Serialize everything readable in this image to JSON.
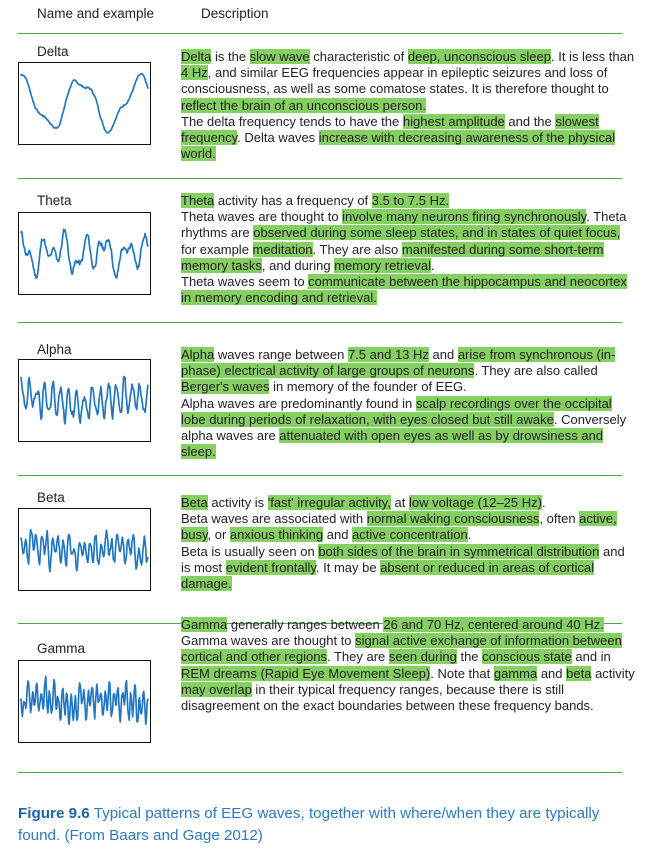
{
  "header": {
    "name_col": "Name and example",
    "desc_col": "Description"
  },
  "rows": [
    {
      "name": "Delta",
      "paragraphs": [
        [
          {
            "t": "Delta",
            "h": true
          },
          {
            "t": " is the "
          },
          {
            "t": "slow wave",
            "h": true
          },
          {
            "t": " characteristic of "
          },
          {
            "t": "deep, unconscious sleep",
            "h": true
          },
          {
            "t": ". It is less than "
          },
          {
            "t": "4 Hz",
            "h": true
          },
          {
            "t": ", and similar EEG frequencies appear in epileptic seizures and loss of consciousness, as well as some comatose states. It is therefore thought to "
          },
          {
            "t": "reflect the brain of an unconscious person.",
            "h": true
          }
        ],
        [
          {
            "t": "The delta frequency tends to have the "
          },
          {
            "t": "highest amplitude",
            "h": true
          },
          {
            "t": " and the "
          },
          {
            "t": "slowest frequency",
            "h": true
          },
          {
            "t": ". Delta waves "
          },
          {
            "t": "increase with decreasing awareness of the physical world.",
            "h": true
          }
        ]
      ]
    },
    {
      "name": "Theta",
      "paragraphs": [
        [
          {
            "t": "Theta",
            "h": true
          },
          {
            "t": " activity has a frequency of "
          },
          {
            "t": "3.5 to 7.5 Hz.",
            "h": true
          }
        ],
        [
          {
            "t": "Theta waves are thought to "
          },
          {
            "t": "involve many neurons firing synchronously",
            "h": true
          },
          {
            "t": ". Theta rhythms are "
          },
          {
            "t": "observed during some sleep states, and in states of quiet focus,",
            "h": true
          },
          {
            "t": " for example "
          },
          {
            "t": "meditation",
            "h": true
          },
          {
            "t": ". They are also "
          },
          {
            "t": "manifested during some short-term memory tasks",
            "h": true
          },
          {
            "t": ", and during "
          },
          {
            "t": "memory retrieval",
            "h": true
          },
          {
            "t": "."
          }
        ],
        [
          {
            "t": "Theta waves seem to "
          },
          {
            "t": "communicate between the hippocampus and neocortex in memory encoding and retrieval.",
            "h": true
          }
        ]
      ]
    },
    {
      "name": "Alpha",
      "paragraphs": [
        [
          {
            "t": "Alpha",
            "h": true
          },
          {
            "t": " waves range between "
          },
          {
            "t": "7.5 and 13 Hz",
            "h": true
          },
          {
            "t": " and "
          },
          {
            "t": "arise from synchronous (in-phase) electrical activity of large groups of neurons",
            "h": true
          },
          {
            "t": ". They are also called "
          },
          {
            "t": "Berger's waves",
            "h": true
          },
          {
            "t": " in memory of the founder of EEG."
          }
        ],
        [
          {
            "t": "Alpha waves are predominantly found in "
          },
          {
            "t": "scalp recordings over the occipital lobe during periods of relaxation, with eyes closed but still awake",
            "h": true
          },
          {
            "t": ". Conversely alpha waves are "
          },
          {
            "t": "attenuated with open eyes as well as by drowsiness and sleep.",
            "h": true
          }
        ]
      ]
    },
    {
      "name": "Beta",
      "paragraphs": [
        [
          {
            "t": "Beta",
            "h": true
          },
          {
            "t": " activity is "
          },
          {
            "t": "'fast' irregular activity,",
            "h": true
          },
          {
            "t": " at "
          },
          {
            "t": "low voltage (12–25 Hz)",
            "h": true
          },
          {
            "t": "."
          }
        ],
        [
          {
            "t": "Beta waves are associated with "
          },
          {
            "t": "normal waking consciousness",
            "h": true
          },
          {
            "t": ", often "
          },
          {
            "t": "active, busy",
            "h": true
          },
          {
            "t": ", or "
          },
          {
            "t": "anxious thinking",
            "h": true
          },
          {
            "t": " and "
          },
          {
            "t": "active concentration",
            "h": true
          },
          {
            "t": "."
          }
        ],
        [
          {
            "t": "Beta is usually seen on "
          },
          {
            "t": "both sides of the brain in symmetrical distribution",
            "h": true
          },
          {
            "t": " and is most "
          },
          {
            "t": "evident frontally",
            "h": true
          },
          {
            "t": ". It may be "
          },
          {
            "t": "absent or reduced in areas of cortical damage.",
            "h": true
          }
        ]
      ]
    },
    {
      "name": "Gamma",
      "paragraphs": [
        [
          {
            "t": "Gamma",
            "h": true
          },
          {
            "t": " generally ranges between "
          },
          {
            "t": "26 and 70 Hz, centered around 40 Hz.",
            "h": true
          }
        ],
        [
          {
            "t": "Gamma waves are thought to "
          },
          {
            "t": "signal active exchange of information between cortical and other regions",
            "h": true
          },
          {
            "t": ". They are "
          },
          {
            "t": "seen during",
            "h": true
          },
          {
            "t": " the "
          },
          {
            "t": "conscious state",
            "h": true
          },
          {
            "t": " and in "
          },
          {
            "t": "REM dreams (Rapid Eye Movement Sleep)",
            "h": true
          },
          {
            "t": ". Note that "
          },
          {
            "t": "gamma",
            "h": true
          },
          {
            "t": " and "
          },
          {
            "t": "beta",
            "h": true
          },
          {
            "t": " activity "
          },
          {
            "t": "may overlap",
            "h": true
          },
          {
            "t": " in their typical frequency ranges, because there is still disagreement on the exact boundaries between these frequency bands."
          }
        ]
      ]
    }
  ],
  "caption": {
    "figure_label": "Figure 9.6",
    "text": "Typical patterns of EEG waves, together with where/when they are typically found. (From Baars and Gage 2012)"
  },
  "colors": {
    "highlight": "#86cf62",
    "rule": "#4aa84a",
    "wave": "#1f77c4",
    "caption": "#2a7ac4"
  }
}
